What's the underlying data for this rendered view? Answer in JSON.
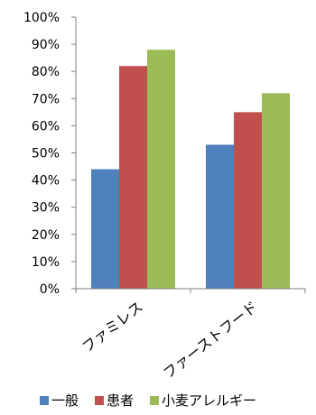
{
  "chart_data": {
    "type": "bar",
    "categories": [
      "ファミレス",
      "ファーストフード"
    ],
    "series": [
      {
        "name": "一般",
        "values": [
          44,
          53
        ],
        "color": "#4f81bd"
      },
      {
        "name": "患者",
        "values": [
          82,
          65
        ],
        "color": "#c0504d"
      },
      {
        "name": "小麦アレルギー",
        "values": [
          88,
          72
        ],
        "color": "#9bbb59"
      }
    ],
    "yticks": [
      "0%",
      "10%",
      "20%",
      "30%",
      "40%",
      "50%",
      "60%",
      "70%",
      "80%",
      "90%",
      "100%"
    ],
    "ylim": [
      0,
      100
    ],
    "grid": false,
    "legend": "bottom"
  }
}
